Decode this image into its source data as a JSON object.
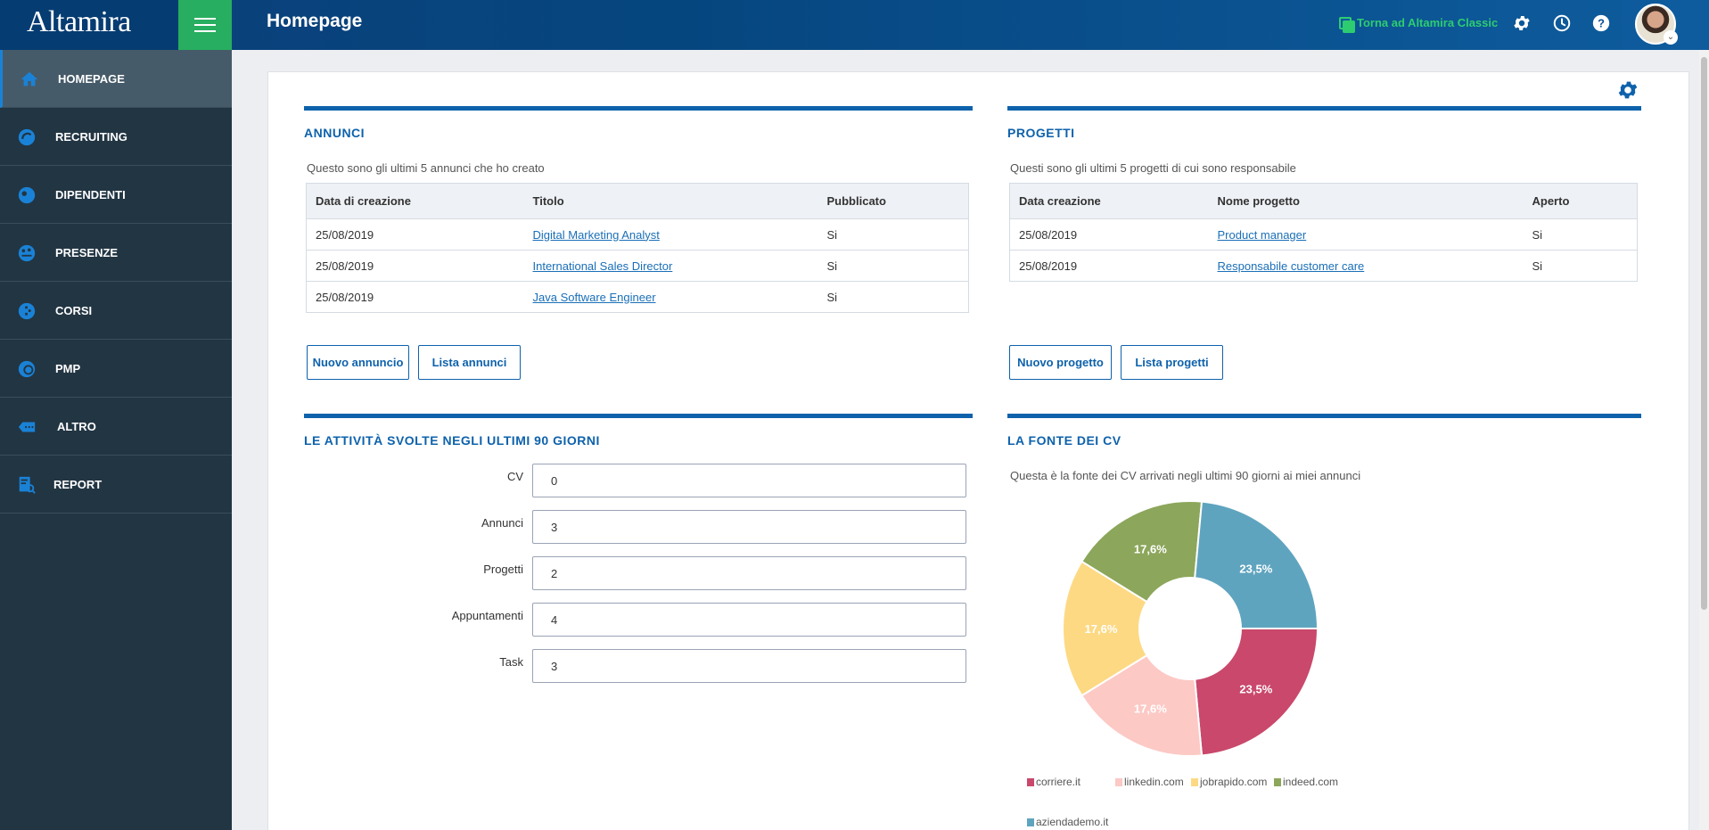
{
  "app": {
    "brand": "Altamira",
    "page_title": "Homepage",
    "classic_link": "Torna ad Altamira Classic",
    "icons": {
      "settings": "gear-icon",
      "history": "clock-icon",
      "help": "question-icon",
      "menu": "hamburger-icon"
    }
  },
  "sidebar": {
    "items": [
      {
        "label": "HOMEPAGE",
        "icon": "home-icon"
      },
      {
        "label": "RECRUITING",
        "icon": "recruiting-icon"
      },
      {
        "label": "DIPENDENTI",
        "icon": "dipendenti-icon"
      },
      {
        "label": "PRESENZE",
        "icon": "presenze-icon"
      },
      {
        "label": "CORSI",
        "icon": "corsi-icon"
      },
      {
        "label": "PMP",
        "icon": "pmp-icon"
      },
      {
        "label": "ALTRO",
        "icon": "altro-icon"
      },
      {
        "label": "REPORT",
        "icon": "report-icon"
      }
    ]
  },
  "annunci": {
    "title": "ANNUNCI",
    "subtitle": "Questo sono gli ultimi 5 annunci che ho creato",
    "columns": [
      "Data di creazione",
      "Titolo",
      "Pubblicato"
    ],
    "rows": [
      [
        "25/08/2019",
        "Digital Marketing Analyst",
        "Si"
      ],
      [
        "25/08/2019",
        "International Sales Director",
        "Si"
      ],
      [
        "25/08/2019",
        "Java Software Engineer",
        "Si"
      ]
    ],
    "btn_new": "Nuovo annuncio",
    "btn_list": "Lista annunci"
  },
  "progetti": {
    "title": "PROGETTI",
    "subtitle": "Questi sono gli ultimi 5 progetti di cui sono responsabile",
    "columns": [
      "Data creazione",
      "Nome progetto",
      "Aperto"
    ],
    "rows": [
      [
        "25/08/2019",
        "Product manager",
        "Si"
      ],
      [
        "25/08/2019",
        "Responsabile customer care",
        "Si"
      ]
    ],
    "btn_new": "Nuovo progetto",
    "btn_list": "Lista progetti"
  },
  "attivita": {
    "title": "LE ATTIVITÀ SVOLTE NEGLI ULTIMI 90 GIORNI",
    "fields": [
      {
        "label": "CV",
        "value": "0"
      },
      {
        "label": "Annunci",
        "value": "3"
      },
      {
        "label": "Progetti",
        "value": "2"
      },
      {
        "label": "Appuntamenti",
        "value": "4"
      },
      {
        "label": "Task",
        "value": "3"
      }
    ]
  },
  "fonte": {
    "title": "LA FONTE DEI CV",
    "subtitle": "Questa è la fonte dei CV arrivati negli ultimi 90 giorni ai miei annunci"
  },
  "chart_data": {
    "type": "pie",
    "donut": true,
    "categories": [
      "corriere.it",
      "linkedin.com",
      "jobrapido.com",
      "indeed.com",
      "aziendademo.it"
    ],
    "values": [
      23.5,
      17.6,
      17.6,
      17.6,
      23.5
    ],
    "labels": [
      "23,5%",
      "17,6%",
      "17,6%",
      "17,6%",
      "23,5%"
    ],
    "colors": [
      "#c9486b",
      "#fcc9c5",
      "#fdd983",
      "#8ca65b",
      "#5fa4bf"
    ],
    "legend_position": "bottom"
  }
}
